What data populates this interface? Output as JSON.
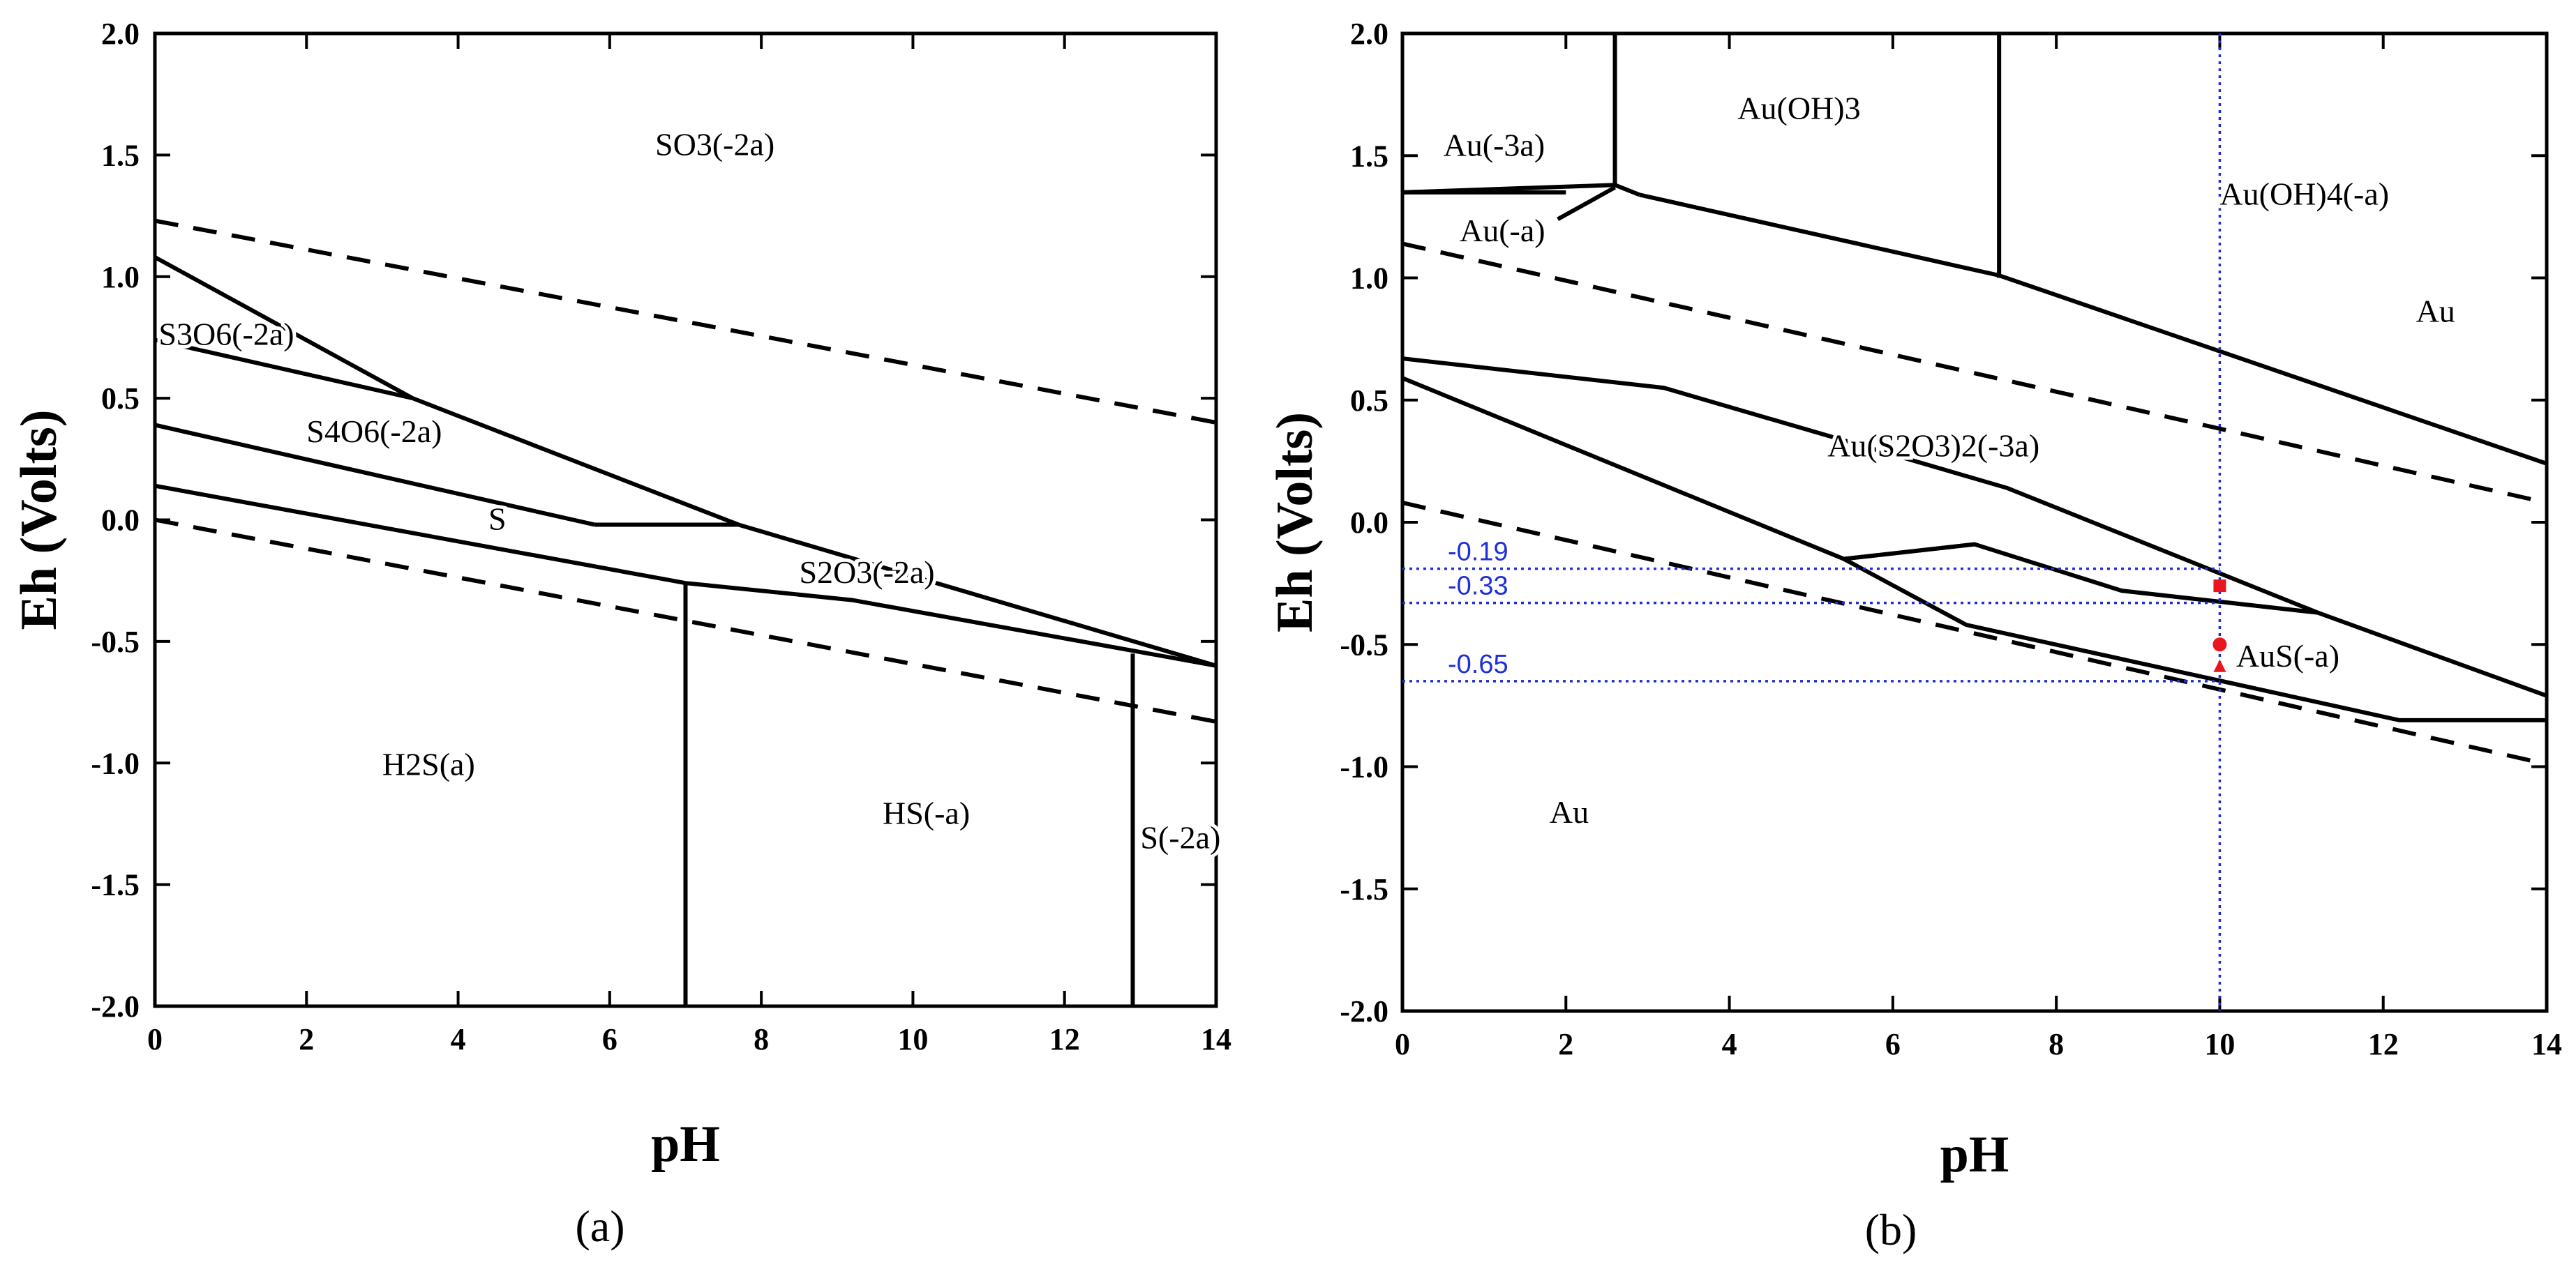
{
  "colors": {
    "axes": "#000000",
    "reference": "#1f2fd6",
    "marker": "#e8161e"
  },
  "chart_data": [
    {
      "id": "a",
      "type": "line",
      "panel_label": "(a)",
      "title": "",
      "xlabel": "pH",
      "ylabel": "Eh (Volts)",
      "xlim": [
        0,
        14
      ],
      "ylim": [
        -2.0,
        2.0
      ],
      "x_ticks": [
        0,
        2,
        4,
        6,
        8,
        10,
        12,
        14
      ],
      "x_tick_labels": [
        "0",
        "2",
        "4",
        "6",
        "8",
        "10",
        "12",
        "14"
      ],
      "y_ticks": [
        -2.0,
        -1.5,
        -1.0,
        -0.5,
        0.0,
        0.5,
        1.0,
        1.5,
        2.0
      ],
      "y_tick_labels": [
        "-2.0",
        "-1.5",
        "-1.0",
        "-0.5",
        "0.0",
        "0.5",
        "1.0",
        "1.5",
        "2.0"
      ],
      "region_labels": [
        {
          "text": "SO3(-2a)",
          "x": 6.6,
          "y": 1.5
        },
        {
          "text": "S3O6(-2a)",
          "x": 0.05,
          "y": 0.72
        },
        {
          "text": "S4O6(-2a)",
          "x": 2.0,
          "y": 0.32
        },
        {
          "text": "S",
          "x": 4.4,
          "y": -0.04
        },
        {
          "text": "S2O3(-2a)",
          "x": 8.5,
          "y": -0.26
        },
        {
          "text": "H2S(a)",
          "x": 3.0,
          "y": -1.05
        },
        {
          "text": "HS(-a)",
          "x": 9.6,
          "y": -1.25
        },
        {
          "text": "S(-2a)",
          "x": 13.0,
          "y": -1.35
        }
      ],
      "boundaries": [
        {
          "name": "S3O6-SO3",
          "x": [
            0,
            3.4
          ],
          "y": [
            1.08,
            0.5
          ]
        },
        {
          "name": "S4O6-upper",
          "x": [
            0,
            3.4,
            7.7,
            14
          ],
          "y": [
            0.74,
            0.5,
            -0.02,
            -0.6
          ]
        },
        {
          "name": "S4O6-S",
          "x": [
            0,
            5.8
          ],
          "y": [
            0.39,
            -0.02
          ]
        },
        {
          "name": "S-S2O3",
          "x": [
            5.8,
            7.7
          ],
          "y": [
            -0.02,
            -0.02
          ]
        },
        {
          "name": "S-H2S",
          "x": [
            0,
            7.0,
            9.2,
            14
          ],
          "y": [
            0.14,
            -0.26,
            -0.33,
            -0.6
          ]
        },
        {
          "name": "H2S-HS",
          "x": [
            7.0,
            7.0
          ],
          "y": [
            -0.26,
            -2.0
          ]
        },
        {
          "name": "HS-S2",
          "x": [
            12.9,
            12.9
          ],
          "y": [
            -0.55,
            -2.0
          ]
        }
      ],
      "water_lines": [
        {
          "name": "O2/H2O",
          "x": [
            0,
            14
          ],
          "y": [
            1.23,
            0.4
          ]
        },
        {
          "name": "H2O/H2",
          "x": [
            0,
            14
          ],
          "y": [
            0.0,
            -0.83
          ]
        }
      ],
      "reference_lines": []
    },
    {
      "id": "b",
      "type": "line",
      "panel_label": "(b)",
      "title": "",
      "xlabel": "pH",
      "ylabel": "Eh (Volts)",
      "xlim": [
        0,
        14
      ],
      "ylim": [
        -2.0,
        2.0
      ],
      "x_ticks": [
        0,
        2,
        4,
        6,
        8,
        10,
        12,
        14
      ],
      "x_tick_labels": [
        "0",
        "2",
        "4",
        "6",
        "8",
        "10",
        "12",
        "14"
      ],
      "y_ticks": [
        -2.0,
        -1.5,
        -1.0,
        -0.5,
        0.0,
        0.5,
        1.0,
        1.5,
        2.0
      ],
      "y_tick_labels": [
        "-2.0",
        "-1.5",
        "-1.0",
        "-0.5",
        "0.0",
        "0.5",
        "1.0",
        "1.5",
        "2.0"
      ],
      "region_labels": [
        {
          "text": "Au(-3a)",
          "x": 0.5,
          "y": 1.5
        },
        {
          "text": "Au(OH)3",
          "x": 4.1,
          "y": 1.65
        },
        {
          "text": "Au(OH)4(-a)",
          "x": 10.0,
          "y": 1.3
        },
        {
          "text": "Au(-a)",
          "x": 0.7,
          "y": 1.15
        },
        {
          "text": "Au",
          "x": 12.4,
          "y": 0.82
        },
        {
          "text": "Au(S2O3)2(-3a)",
          "x": 5.2,
          "y": 0.27
        },
        {
          "text": "AuS(-a)",
          "x": 10.2,
          "y": -0.59
        },
        {
          "text": "Au",
          "x": 1.8,
          "y": -1.23
        }
      ],
      "boundaries": [
        {
          "name": "Au3-AuOH3",
          "x": [
            2.6,
            2.6
          ],
          "y": [
            2.0,
            1.37
          ]
        },
        {
          "name": "AuOH3-AuOH4",
          "x": [
            7.3,
            7.3
          ],
          "y": [
            2.0,
            1.0
          ]
        },
        {
          "name": "Au3-lower",
          "x": [
            0,
            2.6,
            2.9
          ],
          "y": [
            1.35,
            1.38,
            1.34
          ]
        },
        {
          "name": "Au-a-upper",
          "x": [
            0,
            2.0
          ],
          "y": [
            1.35,
            1.35
          ]
        },
        {
          "name": "Au-a-lower",
          "x": [
            1.9,
            2.6
          ],
          "y": [
            1.24,
            1.37
          ]
        },
        {
          "name": "AuOH-Au",
          "x": [
            2.9,
            7.3,
            14
          ],
          "y": [
            1.34,
            1.01,
            0.24
          ]
        },
        {
          "name": "AuS2O3-upper",
          "x": [
            0,
            3.2,
            7.4,
            11.2
          ],
          "y": [
            0.67,
            0.55,
            0.14,
            -0.37
          ]
        },
        {
          "name": "AuS2O3-lower",
          "x": [
            0,
            5.4
          ],
          "y": [
            0.59,
            -0.15
          ]
        },
        {
          "name": "AuS-upper",
          "x": [
            5.4,
            7.0,
            8.8,
            11.2,
            14
          ],
          "y": [
            -0.15,
            -0.09,
            -0.28,
            -0.37,
            -0.71
          ]
        },
        {
          "name": "AuS-lower",
          "x": [
            5.4,
            6.9,
            12.2,
            14
          ],
          "y": [
            -0.15,
            -0.42,
            -0.81,
            -0.81
          ]
        },
        {
          "name": "AuS-split",
          "x": [
            5.4,
            7.0
          ],
          "y": [
            -0.15,
            -0.09
          ]
        }
      ],
      "water_lines": [
        {
          "name": "O2/H2O",
          "x": [
            0,
            14
          ],
          "y": [
            1.14,
            0.08
          ]
        },
        {
          "name": "H2O/H2",
          "x": [
            0,
            14
          ],
          "y": [
            0.08,
            -0.99
          ]
        }
      ],
      "reference_lines": [
        {
          "label": "-0.19",
          "value": -0.19
        },
        {
          "label": "-0.33",
          "value": -0.33
        },
        {
          "label": "-0.65",
          "value": -0.65
        }
      ],
      "vertical_reference": {
        "x": 10.0
      },
      "markers": [
        {
          "x": 10.0,
          "y": -0.26,
          "shape": "square"
        },
        {
          "x": 10.0,
          "y": -0.5,
          "shape": "circle"
        },
        {
          "x": 10.0,
          "y": -0.59,
          "shape": "triangle"
        }
      ]
    }
  ]
}
